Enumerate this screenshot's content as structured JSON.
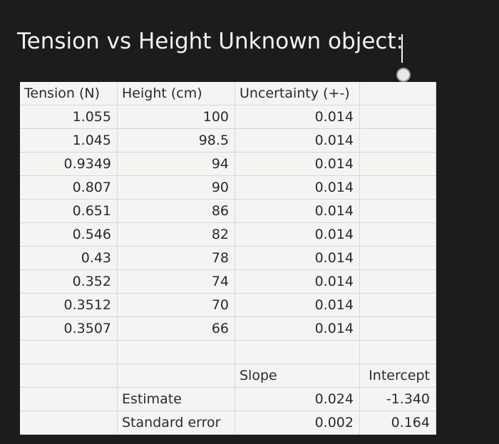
{
  "title": "Tension vs Height Unknown object:",
  "table": {
    "headers": [
      "Tension (N)",
      "Height (cm)",
      "Uncertainty (+-)"
    ],
    "rows": [
      [
        "1.055",
        "100",
        "0.014"
      ],
      [
        "1.045",
        "98.5",
        "0.014"
      ],
      [
        "0.9349",
        "94",
        "0.014"
      ],
      [
        "0.807",
        "90",
        "0.014"
      ],
      [
        "0.651",
        "86",
        "0.014"
      ],
      [
        "0.546",
        "82",
        "0.014"
      ],
      [
        "0.43",
        "78",
        "0.014"
      ],
      [
        "0.352",
        "74",
        "0.014"
      ],
      [
        "0.3512",
        "70",
        "0.014"
      ],
      [
        "0.3507",
        "66",
        "0.014"
      ]
    ]
  },
  "fit": {
    "headers": [
      "Slope",
      "Intercept"
    ],
    "rows": [
      {
        "label": "Estimate",
        "values": [
          "0.024",
          "-1.340"
        ]
      },
      {
        "label": "Standard error",
        "values": [
          "0.002",
          "0.164"
        ]
      }
    ]
  }
}
